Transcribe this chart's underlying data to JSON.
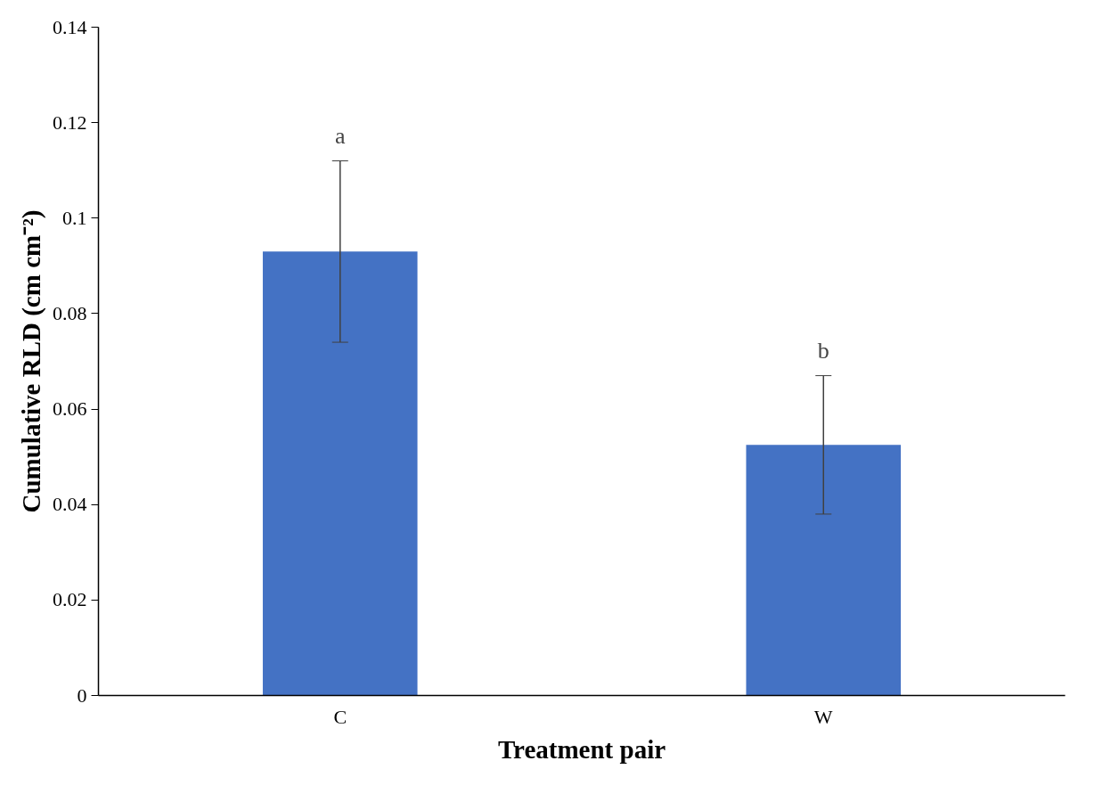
{
  "chart_data": {
    "type": "bar",
    "xlabel": "Treatment pair",
    "ylabel": "Cumulative RLD (cm cm⁻²)",
    "categories": [
      "C",
      "W"
    ],
    "values": [
      0.093,
      0.0525
    ],
    "color": "#4472c4",
    "errors": [
      0.019,
      0.0145
    ],
    "annotations": [
      "a",
      "b"
    ],
    "ylim": [
      0,
      0.14
    ],
    "yticks": [
      0,
      0.02,
      0.04,
      0.06,
      0.08,
      0.1,
      0.12,
      0.14
    ],
    "grid": false
  }
}
